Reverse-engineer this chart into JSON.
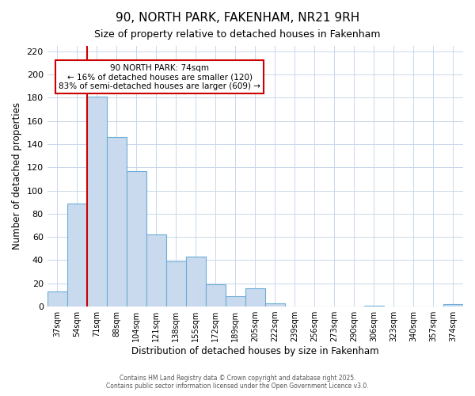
{
  "title": "90, NORTH PARK, FAKENHAM, NR21 9RH",
  "subtitle": "Size of property relative to detached houses in Fakenham",
  "xlabel": "Distribution of detached houses by size in Fakenham",
  "ylabel": "Number of detached properties",
  "bar_labels": [
    "37sqm",
    "54sqm",
    "71sqm",
    "88sqm",
    "104sqm",
    "121sqm",
    "138sqm",
    "155sqm",
    "172sqm",
    "189sqm",
    "205sqm",
    "222sqm",
    "239sqm",
    "256sqm",
    "273sqm",
    "290sqm",
    "306sqm",
    "323sqm",
    "340sqm",
    "357sqm",
    "374sqm"
  ],
  "bar_values": [
    13,
    89,
    181,
    146,
    117,
    62,
    39,
    43,
    19,
    9,
    16,
    3,
    0,
    0,
    0,
    0,
    1,
    0,
    0,
    0,
    2
  ],
  "bar_color": "#c9d9ee",
  "bar_edge_color": "#6baed6",
  "background_color": "#ffffff",
  "grid_color": "#c8d8ea",
  "ylim": [
    0,
    225
  ],
  "yticks": [
    0,
    20,
    40,
    60,
    80,
    100,
    120,
    140,
    160,
    180,
    200,
    220
  ],
  "vline_x_index": 2,
  "vline_color": "#cc0000",
  "annotation_title": "90 NORTH PARK: 74sqm",
  "annotation_line1": "← 16% of detached houses are smaller (120)",
  "annotation_line2": "83% of semi-detached houses are larger (609) →",
  "annotation_box_color": "#ffffff",
  "annotation_box_edge": "#cc0000",
  "footer_line1": "Contains HM Land Registry data © Crown copyright and database right 2025.",
  "footer_line2": "Contains public sector information licensed under the Open Government Licence v3.0."
}
